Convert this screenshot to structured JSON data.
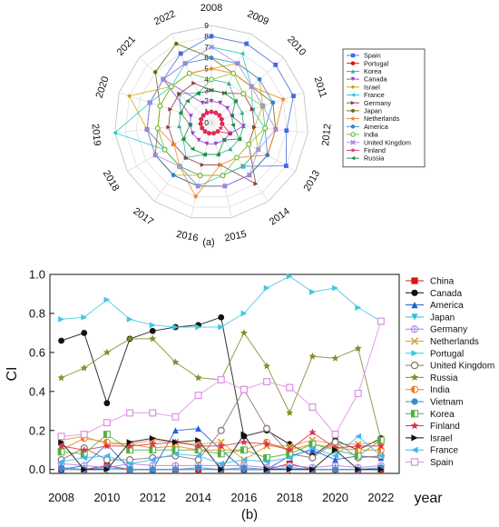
{
  "chart_data": [
    {
      "type": "radar",
      "caption": "(a)",
      "categories": [
        "2008",
        "2009",
        "2010",
        "2011",
        "2012",
        "2013",
        "2014",
        "2015",
        "2016",
        "2017",
        "2018",
        "2019",
        "2020",
        "2021",
        "2022"
      ],
      "radial_ticks": [
        "0",
        "1",
        "2",
        "3",
        "4",
        "5",
        "6",
        "7",
        "8",
        "9"
      ],
      "rlim": [
        0,
        9
      ],
      "legend_position": "right",
      "series": [
        {
          "name": "Spain",
          "color": "#4169E1",
          "marker": "square",
          "values": [
            8,
            8,
            8,
            8,
            7,
            8,
            5,
            5,
            5,
            5,
            5,
            6,
            6,
            6,
            7
          ]
        },
        {
          "name": "Portugal",
          "color": "#E00000",
          "marker": "circle",
          "values": [
            1,
            1,
            1,
            1,
            1,
            2,
            1,
            1,
            1,
            1,
            1,
            1,
            1,
            1,
            1
          ]
        },
        {
          "name": "Korea",
          "color": "#2EAD8A",
          "marker": "triangle",
          "values": [
            4,
            4,
            3,
            3,
            3,
            3,
            3,
            3,
            3,
            4,
            3,
            3,
            3,
            4,
            3
          ]
        },
        {
          "name": "Canada",
          "color": "#9B3FC9",
          "marker": "triangle-down",
          "values": [
            2,
            2,
            2,
            2,
            3,
            2,
            2,
            2,
            2,
            2,
            2,
            2,
            2,
            6,
            2
          ]
        },
        {
          "name": "Israel",
          "color": "#C9A400",
          "marker": "diamond",
          "values": [
            5,
            6,
            6,
            5,
            4,
            5,
            5,
            5,
            5,
            6,
            6,
            6,
            8,
            5,
            5
          ]
        },
        {
          "name": "France",
          "color": "#1EC8C8",
          "marker": "triangle-left",
          "values": [
            7,
            7,
            5,
            4,
            5,
            5,
            5,
            5,
            6,
            5,
            5,
            9,
            6,
            5,
            6
          ]
        },
        {
          "name": "Germany",
          "color": "#8B3A3A",
          "marker": "triangle-right",
          "values": [
            3,
            3,
            4,
            4,
            4,
            4,
            7,
            4,
            4,
            4,
            4,
            4,
            4,
            4,
            4
          ]
        },
        {
          "name": "Japan",
          "color": "#6B6B00",
          "marker": "hexagon",
          "values": [
            6,
            5,
            5,
            6,
            6,
            6,
            6,
            6,
            6,
            6,
            6,
            5,
            5,
            7,
            8
          ]
        },
        {
          "name": "Netherlands",
          "color": "#F07E20",
          "marker": "star",
          "values": [
            5,
            5,
            5,
            7,
            6,
            6,
            4,
            4,
            7,
            5,
            4,
            5,
            5,
            5,
            5
          ]
        },
        {
          "name": "America",
          "color": "#3C82C8",
          "marker": "circle",
          "values": [
            6,
            6,
            6,
            6,
            5,
            6,
            6,
            6,
            6,
            6,
            6,
            6,
            6,
            6,
            6
          ]
        },
        {
          "name": "India",
          "color": "#6FBF2A",
          "marker": "circle-open",
          "values": [
            4,
            5,
            4,
            5,
            5,
            4,
            4,
            5,
            5,
            5,
            5,
            5,
            5,
            5,
            5
          ]
        },
        {
          "name": "United Kingdom",
          "color": "#A78BDB",
          "marker": "x",
          "values": [
            7,
            6,
            5,
            5,
            6,
            5,
            6,
            6,
            6,
            5,
            6,
            6,
            6,
            6,
            6
          ]
        },
        {
          "name": "Finland",
          "color": "#E0306E",
          "marker": "star",
          "values": [
            1,
            1,
            1,
            1,
            1,
            1,
            1,
            1,
            1,
            1,
            1,
            1,
            1,
            1,
            1
          ]
        },
        {
          "name": "Russia",
          "color": "#1A8C3C",
          "marker": "triangle-left",
          "values": [
            3,
            3,
            3,
            2,
            2,
            3,
            2,
            3,
            3,
            3,
            3,
            2,
            3,
            3,
            3
          ]
        }
      ]
    },
    {
      "type": "line",
      "caption": "(b)",
      "xlabel": "year",
      "ylabel": "CI",
      "x": [
        2008,
        2009,
        2010,
        2011,
        2012,
        2013,
        2014,
        2015,
        2016,
        2017,
        2018,
        2019,
        2020,
        2021,
        2022
      ],
      "xticks": [
        "2008",
        "2010",
        "2012",
        "2014",
        "2016",
        "2018",
        "2020",
        "2022"
      ],
      "yticks": [
        "0.0",
        "0.2",
        "0.4",
        "0.6",
        "0.8",
        "1.0"
      ],
      "xlim": [
        2007.5,
        2022.8
      ],
      "ylim": [
        -0.02,
        1.0
      ],
      "legend_position": "right",
      "series": [
        {
          "name": "China",
          "color": "#E01010",
          "marker": "square",
          "values": [
            0.0,
            0.0,
            0.02,
            0.0,
            0.0,
            0.0,
            0.0,
            0.0,
            0.0,
            0.0,
            0.03,
            0.0,
            0.0,
            0.0,
            0.0
          ]
        },
        {
          "name": "Canada",
          "color": "#111111",
          "marker": "circle",
          "values": [
            0.66,
            0.7,
            0.34,
            0.67,
            0.71,
            0.73,
            0.74,
            0.78,
            0.17,
            0.2,
            0.13,
            0.07,
            0.15,
            0.1,
            0.16
          ]
        },
        {
          "name": "America",
          "color": "#1F5FD6",
          "marker": "triangle",
          "values": [
            0.0,
            0.02,
            0.13,
            0.0,
            0.0,
            0.2,
            0.21,
            0.1,
            0.0,
            0.0,
            0.07,
            0.1,
            0.05,
            0.07,
            0.06
          ]
        },
        {
          "name": "Japan",
          "color": "#30C0D0",
          "marker": "triangle-down",
          "values": [
            0.0,
            0.0,
            0.0,
            0.0,
            0.0,
            0.0,
            0.0,
            0.0,
            0.0,
            0.0,
            0.0,
            0.0,
            0.0,
            0.0,
            0.0
          ]
        },
        {
          "name": "Germany",
          "color": "#B07CE0",
          "marker": "circle-plus",
          "values": [
            0.03,
            0.02,
            0.01,
            0.03,
            0.02,
            0.02,
            0.02,
            0.02,
            0.02,
            0.01,
            0.02,
            0.01,
            0.02,
            0.01,
            0.02
          ]
        },
        {
          "name": "Netherlands",
          "color": "#E0A030",
          "marker": "x",
          "values": [
            0.15,
            0.17,
            0.13,
            0.13,
            0.15,
            0.14,
            0.13,
            0.14,
            0.05,
            0.12,
            0.12,
            0.15,
            0.13,
            0.13,
            0.14
          ]
        },
        {
          "name": "Portugal",
          "color": "#3EC8E0",
          "marker": "triangle-right",
          "values": [
            0.77,
            0.78,
            0.87,
            0.77,
            0.74,
            0.73,
            0.73,
            0.73,
            0.8,
            0.93,
            0.99,
            0.91,
            0.93,
            0.83,
            0.76
          ]
        },
        {
          "name": "United Kingdom",
          "color": "#8A7070",
          "marker": "circle-open",
          "values": [
            0.05,
            0.11,
            0.05,
            0.05,
            0.06,
            0.07,
            0.05,
            0.2,
            0.41,
            0.21,
            0.08,
            0.06,
            0.14,
            0.06,
            0.07
          ]
        },
        {
          "name": "Russia",
          "color": "#8A8A2A",
          "marker": "star",
          "values": [
            0.47,
            0.52,
            0.6,
            0.67,
            0.67,
            0.55,
            0.47,
            0.46,
            0.7,
            0.53,
            0.29,
            0.58,
            0.57,
            0.62,
            0.15
          ]
        },
        {
          "name": "India",
          "color": "#F07E20",
          "marker": "half-circle",
          "values": [
            0.1,
            0.16,
            0.14,
            0.13,
            0.11,
            0.12,
            0.1,
            0.1,
            0.1,
            0.14,
            0.1,
            0.13,
            0.11,
            0.1,
            0.1
          ]
        },
        {
          "name": "Vietnam",
          "color": "#3C8CD0",
          "marker": "circle",
          "values": [
            0.01,
            0.0,
            0.01,
            0.0,
            0.0,
            0.0,
            0.01,
            0.0,
            0.01,
            0.0,
            0.01,
            0.0,
            0.0,
            0.0,
            0.01
          ]
        },
        {
          "name": "Korea",
          "color": "#50B040",
          "marker": "half-square",
          "values": [
            0.09,
            0.08,
            0.18,
            0.1,
            0.1,
            0.1,
            0.1,
            0.08,
            0.1,
            0.06,
            0.08,
            0.13,
            0.1,
            0.07,
            0.15
          ]
        },
        {
          "name": "Finland",
          "color": "#E03050",
          "marker": "star",
          "values": [
            0.12,
            0.1,
            0.12,
            0.12,
            0.13,
            0.14,
            0.12,
            0.12,
            0.14,
            0.13,
            0.1,
            0.19,
            0.11,
            0.12,
            0.12
          ]
        },
        {
          "name": "Israel",
          "color": "#111111",
          "marker": "triangle-right",
          "values": [
            0.14,
            0.0,
            0.0,
            0.14,
            0.16,
            0.14,
            0.15,
            0.0,
            0.18,
            0.0,
            0.0,
            0.0,
            0.1,
            0.0,
            0.0
          ]
        },
        {
          "name": "France",
          "color": "#3EB8F0",
          "marker": "triangle-left",
          "values": [
            0.04,
            0.06,
            0.07,
            0.03,
            0.05,
            0.08,
            0.07,
            0.03,
            0.05,
            0.04,
            0.06,
            0.11,
            0.07,
            0.17,
            0.07
          ]
        },
        {
          "name": "Spain",
          "color": "#E08CE8",
          "marker": "square-open",
          "values": [
            0.17,
            0.18,
            0.24,
            0.29,
            0.29,
            0.27,
            0.38,
            0.46,
            0.41,
            0.45,
            0.42,
            0.32,
            0.18,
            0.39,
            0.76
          ]
        }
      ]
    }
  ]
}
